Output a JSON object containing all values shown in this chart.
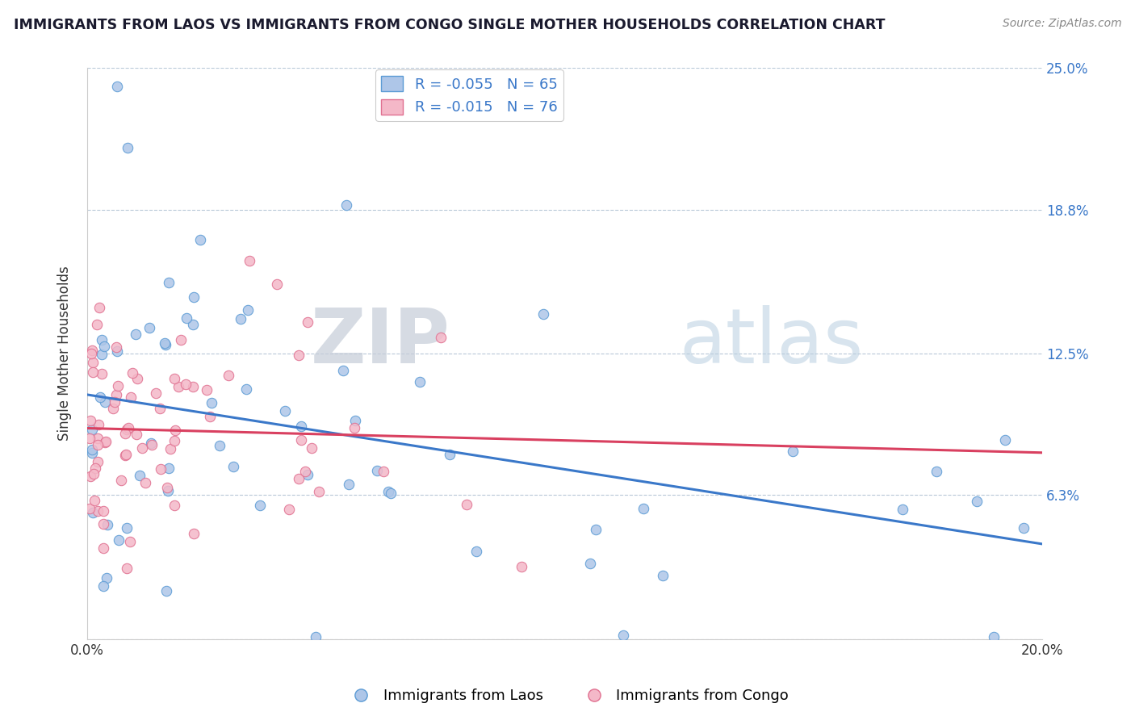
{
  "title": "IMMIGRANTS FROM LAOS VS IMMIGRANTS FROM CONGO SINGLE MOTHER HOUSEHOLDS CORRELATION CHART",
  "source": "Source: ZipAtlas.com",
  "ylabel": "Single Mother Households",
  "x_min": 0.0,
  "x_max": 0.2,
  "y_min": 0.0,
  "y_max": 0.25,
  "laos_color": "#aec6e8",
  "laos_edge_color": "#5b9bd5",
  "congo_color": "#f4b8c8",
  "congo_edge_color": "#e07090",
  "laos_line_color": "#3a78c9",
  "congo_line_color": "#d94060",
  "watermark_zip": "ZIP",
  "watermark_atlas": "atlas",
  "watermark_color_zip": "#c5cdd8",
  "watermark_color_atlas": "#b8cfe0",
  "legend_label_laos": "Immigrants from Laos",
  "legend_label_congo": "Immigrants from Congo",
  "laos_R": -0.055,
  "laos_N": 65,
  "congo_R": -0.015,
  "congo_N": 76,
  "laos_intercept": 0.091,
  "laos_slope": -0.125,
  "congo_intercept": 0.085,
  "congo_slope": -0.035
}
